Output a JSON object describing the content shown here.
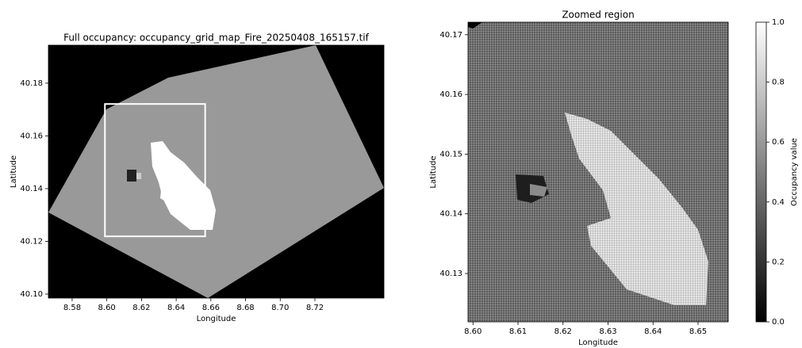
{
  "chart_data": [
    {
      "type": "image",
      "title": "Full occupancy: occupancy_grid_map_Fire_20250408_165157.tif",
      "xlabel": "Longitude",
      "ylabel": "Latitude",
      "xlim": [
        8.5663,
        8.7598
      ],
      "ylim": [
        40.0985,
        40.1944
      ],
      "xticks": [
        8.58,
        {
          "value": 8.6,
          "label": "8.60"
        },
        8.62,
        8.64,
        8.66,
        8.68,
        {
          "value": 8.7,
          "label": "8.70"
        },
        8.72
      ],
      "yticks": [
        {
          "value": 40.1,
          "label": "40.10"
        },
        40.12,
        40.14,
        40.16,
        40.18
      ]
    },
    {
      "type": "image",
      "title": "Zoomed region",
      "xlabel": "Longitude",
      "ylabel": "Latitude",
      "xlim": [
        8.5989,
        8.6567
      ],
      "ylim": [
        40.1219,
        40.1721
      ],
      "xticks": [
        {
          "value": 8.6,
          "label": "8.60"
        },
        8.61,
        8.62,
        8.63,
        8.64,
        8.65
      ],
      "yticks": [
        40.13,
        40.14,
        40.15,
        40.16,
        40.17
      ],
      "colorbar": {
        "label": "Occupancy value",
        "lim": [
          0,
          1
        ],
        "ticks": [
          {
            "value": 0,
            "label": "0.0"
          },
          0.2,
          0.4,
          0.6,
          0.8,
          {
            "value": 1,
            "label": "1.0"
          }
        ]
      }
    }
  ]
}
